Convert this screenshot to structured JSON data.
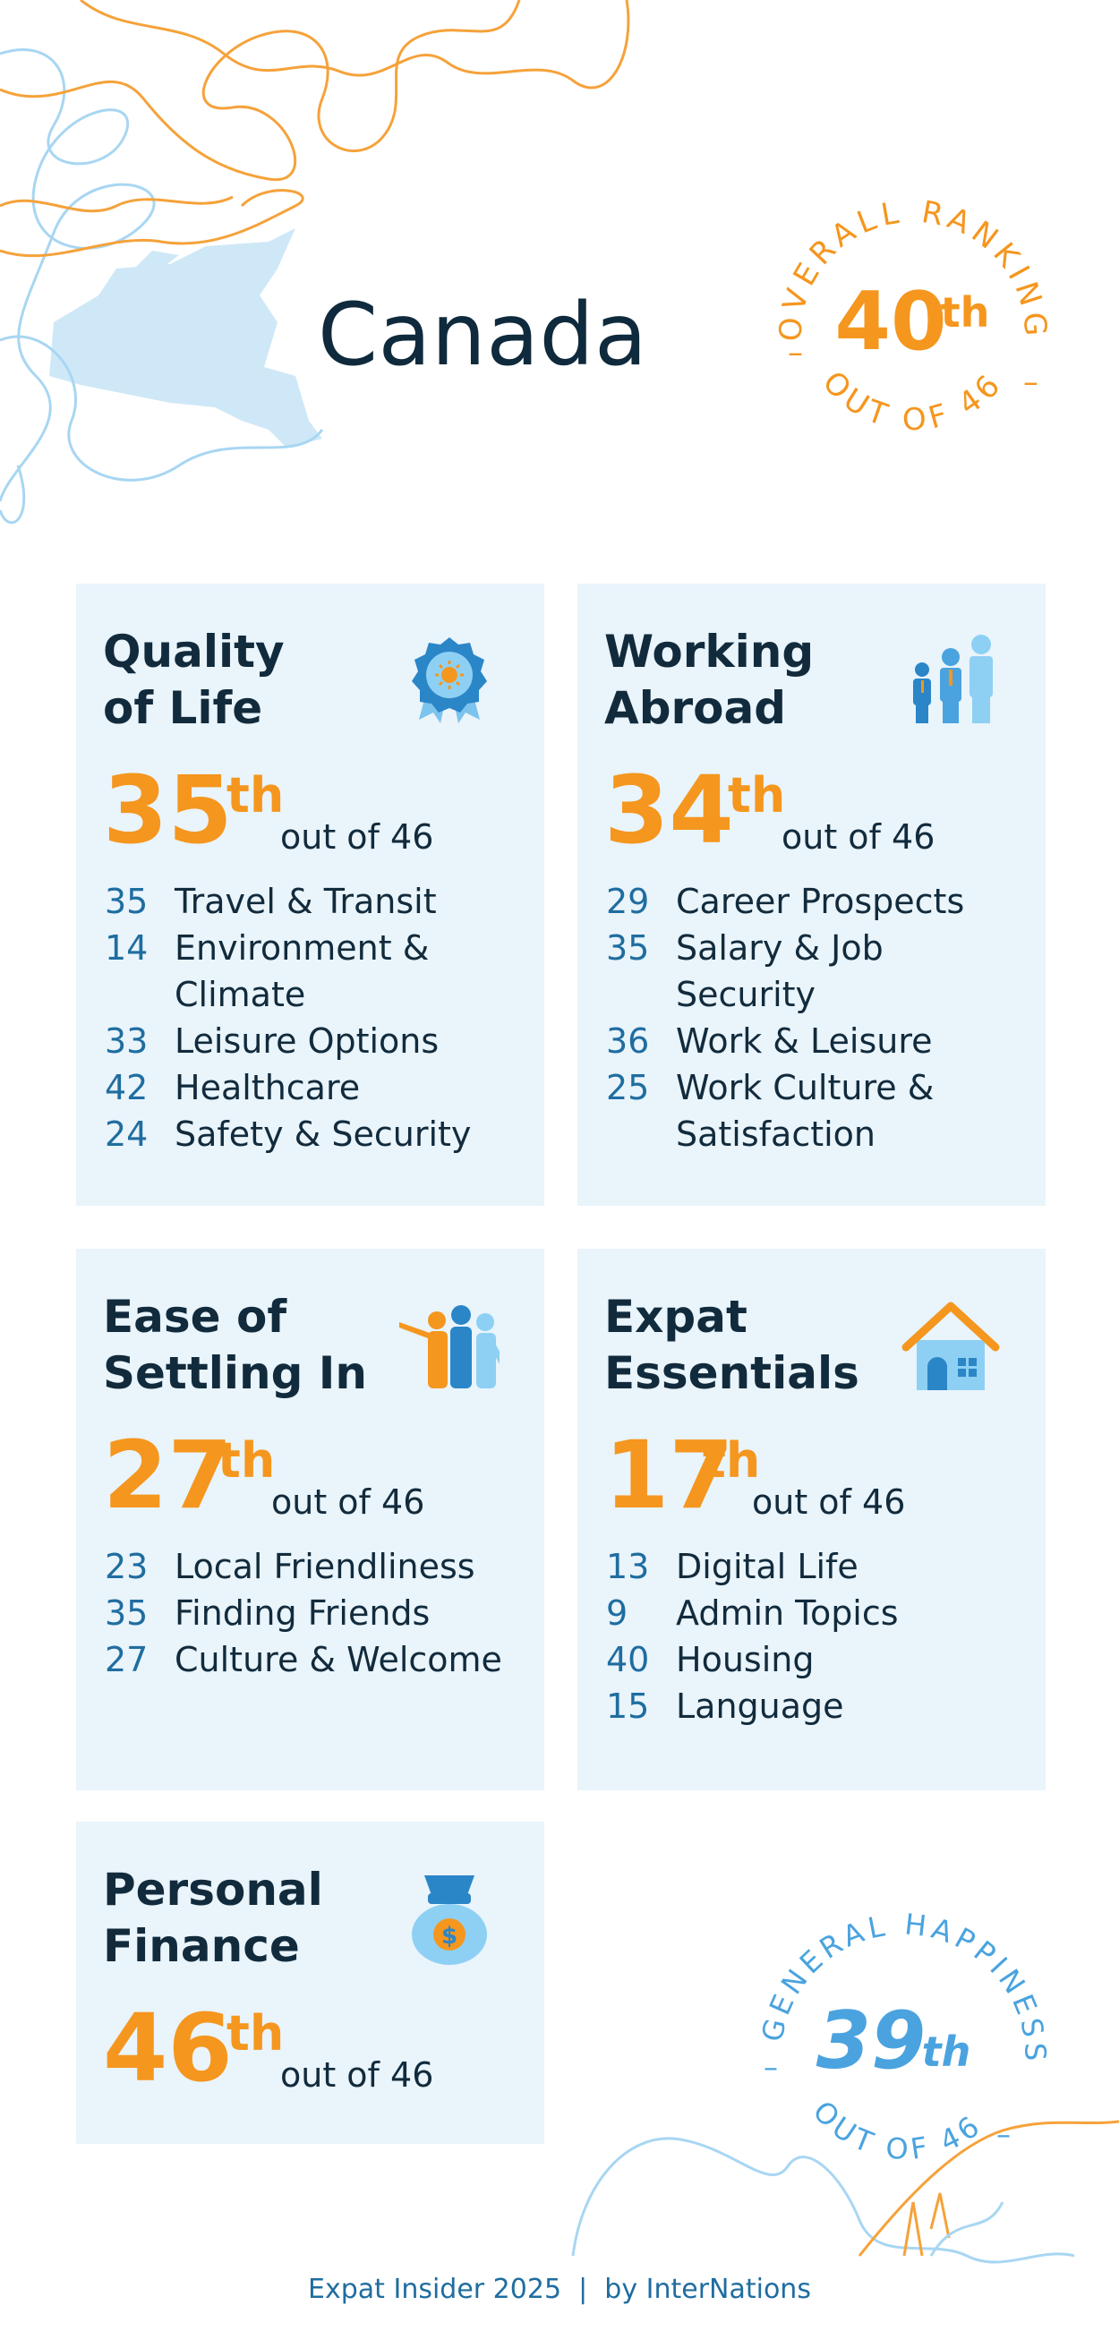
{
  "country": "Canada",
  "overall": {
    "label_top": "OVERALL RANKING",
    "rank": "40",
    "suffix": "th",
    "label_bottom": "OUT OF 46"
  },
  "happiness": {
    "label_top": "GENERAL HAPPINESS",
    "rank": "39",
    "suffix": "th",
    "label_bottom": "OUT OF 46"
  },
  "cards": {
    "quality": {
      "title": "Quality\nof Life",
      "rank": "35",
      "suffix": "th",
      "out_of": "out of 46",
      "icon": "award-badge-icon",
      "metrics": [
        {
          "rank": "35",
          "label": "Travel & Transit"
        },
        {
          "rank": "14",
          "label": "Environment & Climate"
        },
        {
          "rank": "33",
          "label": "Leisure Options"
        },
        {
          "rank": "42",
          "label": "Healthcare"
        },
        {
          "rank": "24",
          "label": "Safety & Security"
        }
      ]
    },
    "working": {
      "title": "Working\nAbroad",
      "rank": "34",
      "suffix": "th",
      "out_of": "out of 46",
      "icon": "business-people-icon",
      "metrics": [
        {
          "rank": "29",
          "label": "Career Prospects"
        },
        {
          "rank": "35",
          "label": "Salary & Job Security"
        },
        {
          "rank": "36",
          "label": "Work & Leisure"
        },
        {
          "rank": "25",
          "label": "Work Culture & Satisfaction"
        }
      ]
    },
    "settling": {
      "title": "Ease of\nSettling In",
      "rank": "27",
      "suffix": "th",
      "out_of": "out of 46",
      "icon": "group-welcome-icon",
      "metrics": [
        {
          "rank": "23",
          "label": "Local Friendliness"
        },
        {
          "rank": "35",
          "label": "Finding Friends"
        },
        {
          "rank": "27",
          "label": "Culture & Welcome"
        }
      ]
    },
    "essentials": {
      "title": "Expat\nEssentials",
      "rank": "17",
      "suffix": "th",
      "out_of": "out of 46",
      "icon": "house-icon",
      "metrics": [
        {
          "rank": "13",
          "label": "Digital Life"
        },
        {
          "rank": "9",
          "label": "Admin Topics"
        },
        {
          "rank": "40",
          "label": "Housing"
        },
        {
          "rank": "15",
          "label": "Language"
        }
      ]
    },
    "finance": {
      "title": "Personal\nFinance",
      "rank": "46",
      "suffix": "th",
      "out_of": "out of 46",
      "icon": "money-bag-icon",
      "metrics": []
    }
  },
  "footer": "Expat Insider 2025  |  by InterNations",
  "colors": {
    "orange": "#f5961e",
    "navy": "#122b3c",
    "blue": "#1f6da0",
    "light_blue": "#4aa3df",
    "card_bg": "#e9f4fb"
  }
}
